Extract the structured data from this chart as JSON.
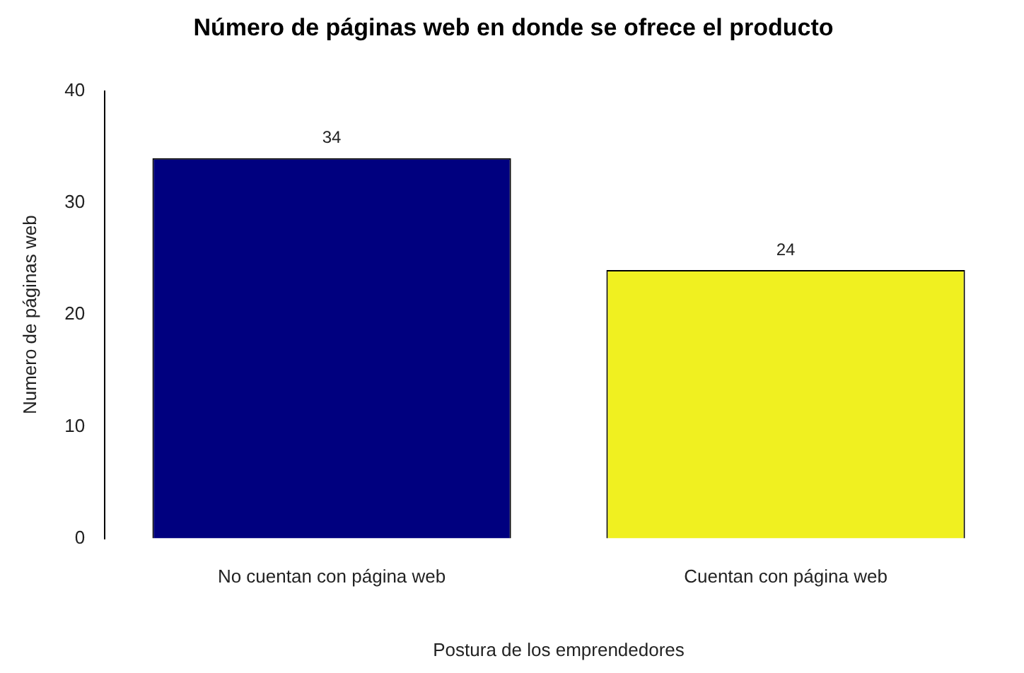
{
  "chart_data": {
    "type": "bar",
    "title": "Número de páginas web en donde se ofrece el producto",
    "xlabel": "Postura de los emprendedores",
    "ylabel": "Numero de páginas web",
    "categories": [
      "No cuentan con página web",
      "Cuentan con página web"
    ],
    "values": [
      34,
      24
    ],
    "colors": [
      "#00007f",
      "#f0f020"
    ],
    "ylim": [
      0,
      40
    ],
    "yticks": [
      0,
      10,
      20,
      30,
      40
    ],
    "grid": false,
    "legend": false,
    "data_labels": true
  }
}
